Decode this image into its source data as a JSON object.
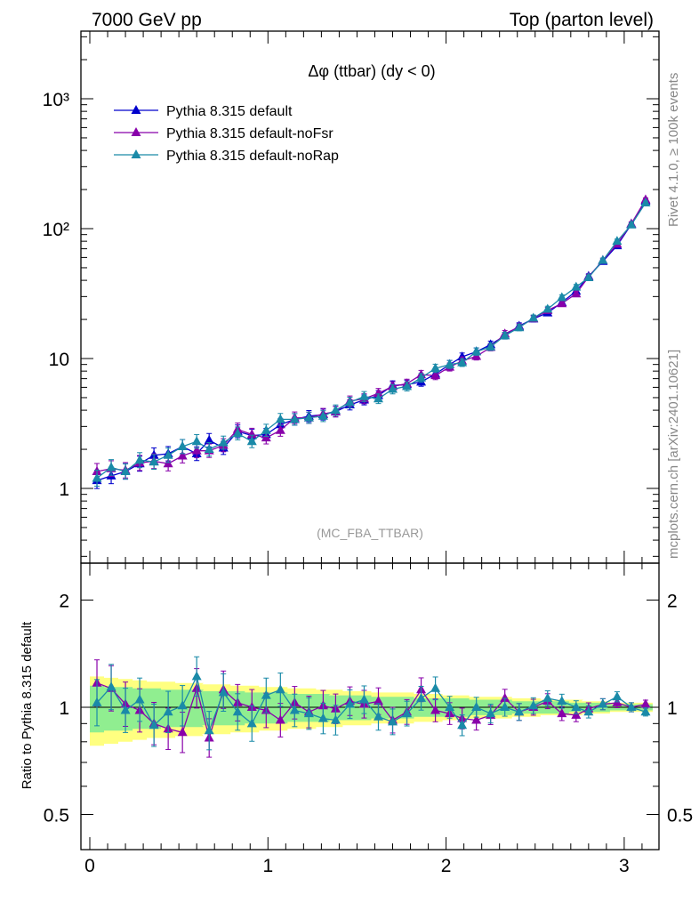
{
  "header": {
    "left": "7000 GeV pp",
    "right": "Top (parton level)"
  },
  "side_labels": {
    "rivet": "Rivet 4.1.0, ≥ 100k events",
    "mcplots": "mcplots.cern.ch [arXiv:2401.10621]"
  },
  "chart_data": [
    {
      "type": "line",
      "title": "Δφ (ttbar) (dy < 0)",
      "watermark": "(MC_FBA_TTBAR)",
      "xlabel": "",
      "ylabel": "",
      "yscale": "log",
      "ylim": [
        0.3,
        3000
      ],
      "xlim": [
        -0.05,
        3.2
      ],
      "xticks": [
        "0",
        "1",
        "2",
        "3"
      ],
      "yticks": [
        "1",
        "10",
        "10²",
        "10³"
      ],
      "legend_position": "top-left",
      "x": [
        0.04,
        0.12,
        0.2,
        0.28,
        0.36,
        0.44,
        0.52,
        0.6,
        0.67,
        0.75,
        0.83,
        0.91,
        0.99,
        1.07,
        1.15,
        1.23,
        1.31,
        1.38,
        1.46,
        1.54,
        1.62,
        1.7,
        1.78,
        1.86,
        1.94,
        2.02,
        2.09,
        2.17,
        2.25,
        2.33,
        2.41,
        2.49,
        2.57,
        2.65,
        2.73,
        2.8,
        2.88,
        2.96,
        3.04,
        3.12
      ],
      "series": [
        {
          "name": "Pythia 8.315 default",
          "color": "#0000cc",
          "values": [
            1.15,
            1.25,
            1.35,
            1.55,
            1.8,
            1.85,
            2.1,
            1.85,
            2.35,
            2.05,
            2.75,
            2.55,
            2.6,
            3.1,
            3.4,
            3.6,
            3.7,
            3.9,
            4.4,
            4.8,
            5.2,
            6.2,
            6.3,
            6.6,
            7.6,
            9.0,
            10.3,
            11.3,
            12.8,
            15.0,
            17.8,
            20.2,
            22.5,
            27.0,
            33.0,
            43.0,
            56.0,
            74.0,
            108.0,
            163.0
          ]
        },
        {
          "name": "Pythia 8.315 default-noFsr",
          "color": "#8800aa",
          "values": [
            1.35,
            1.42,
            1.38,
            1.57,
            1.62,
            1.55,
            1.78,
            1.95,
            1.95,
            2.15,
            2.85,
            2.6,
            2.45,
            2.8,
            3.5,
            3.5,
            3.75,
            3.9,
            4.7,
            4.9,
            5.4,
            6.1,
            6.4,
            7.5,
            7.4,
            8.6,
            9.6,
            10.4,
            12.2,
            15.5,
            17.5,
            20.3,
            23.5,
            26.5,
            31.5,
            42.5,
            57.0,
            76.0,
            109.0,
            167.0
          ]
        },
        {
          "name": "Pythia 8.315 default-noRap",
          "color": "#1a8aa8",
          "values": [
            1.2,
            1.45,
            1.35,
            1.65,
            1.6,
            1.8,
            2.1,
            2.3,
            2.0,
            2.25,
            2.65,
            2.3,
            2.8,
            3.4,
            3.4,
            3.5,
            3.6,
            4.0,
            4.6,
            5.1,
            4.9,
            5.8,
            6.1,
            7.1,
            8.4,
            9.0,
            9.3,
            11.3,
            12.3,
            15.0,
            17.3,
            20.5,
            24.0,
            29.5,
            35.5,
            42.0,
            57.0,
            80.0,
            107.0,
            158.0
          ]
        }
      ]
    },
    {
      "type": "line",
      "title": "",
      "ylabel": "Ratio to Pythia 8.315 default",
      "ylim": [
        0.4,
        2.45
      ],
      "xlim": [
        -0.05,
        3.2
      ],
      "xticks": [
        "0",
        "1",
        "2",
        "3"
      ],
      "yticks": [
        "0.5",
        "1",
        "2"
      ],
      "reference_line": 1,
      "band_inner_color": "#90ee90",
      "band_outer_color": "#ffff80",
      "x": [
        0.04,
        0.12,
        0.2,
        0.28,
        0.36,
        0.44,
        0.52,
        0.6,
        0.67,
        0.75,
        0.83,
        0.91,
        0.99,
        1.07,
        1.15,
        1.23,
        1.31,
        1.38,
        1.46,
        1.54,
        1.62,
        1.7,
        1.78,
        1.86,
        1.94,
        2.02,
        2.09,
        2.17,
        2.25,
        2.33,
        2.41,
        2.49,
        2.57,
        2.65,
        2.73,
        2.8,
        2.88,
        2.96,
        3.04,
        3.12
      ],
      "band_inner": [
        0.15,
        0.14,
        0.14,
        0.13,
        0.13,
        0.12,
        0.12,
        0.12,
        0.11,
        0.11,
        0.11,
        0.1,
        0.1,
        0.1,
        0.09,
        0.09,
        0.09,
        0.08,
        0.08,
        0.08,
        0.07,
        0.07,
        0.07,
        0.06,
        0.06,
        0.06,
        0.06,
        0.05,
        0.05,
        0.05,
        0.04,
        0.04,
        0.04,
        0.04,
        0.03,
        0.03,
        0.03,
        0.02,
        0.02,
        0.02
      ],
      "band_outer": [
        0.22,
        0.21,
        0.2,
        0.19,
        0.18,
        0.18,
        0.17,
        0.17,
        0.16,
        0.16,
        0.15,
        0.15,
        0.14,
        0.14,
        0.13,
        0.13,
        0.12,
        0.12,
        0.11,
        0.11,
        0.1,
        0.1,
        0.1,
        0.09,
        0.09,
        0.08,
        0.08,
        0.07,
        0.07,
        0.07,
        0.06,
        0.06,
        0.05,
        0.05,
        0.05,
        0.04,
        0.04,
        0.03,
        0.03,
        0.03
      ],
      "series": [
        {
          "name": "Pythia 8.315 default-noFsr",
          "color": "#8800aa",
          "values": [
            1.17,
            1.13,
            1.02,
            0.98,
            0.9,
            0.87,
            0.85,
            1.13,
            0.82,
            1.12,
            1.03,
            1.0,
            0.98,
            0.92,
            1.03,
            0.97,
            1.01,
            0.99,
            1.04,
            1.02,
            1.04,
            0.92,
            0.97,
            1.12,
            0.98,
            0.96,
            0.93,
            0.92,
            0.95,
            1.06,
            0.97,
            1.0,
            1.04,
            0.96,
            0.95,
            0.99,
            1.02,
            1.03,
            1.0,
            1.02
          ]
        },
        {
          "name": "Pythia 8.315 default-noRap",
          "color": "#1a8aa8",
          "values": [
            1.03,
            1.14,
            0.98,
            1.05,
            0.89,
            0.97,
            1.01,
            1.22,
            0.86,
            1.1,
            0.97,
            0.9,
            1.08,
            1.12,
            0.98,
            0.96,
            0.93,
            0.92,
            1.02,
            1.05,
            0.94,
            0.91,
            0.96,
            1.06,
            1.13,
            1.0,
            0.89,
            1.0,
            0.96,
            1.0,
            0.97,
            1.01,
            1.06,
            1.04,
            1.0,
            0.97,
            1.02,
            1.07,
            1.0,
            0.97
          ]
        }
      ]
    }
  ]
}
